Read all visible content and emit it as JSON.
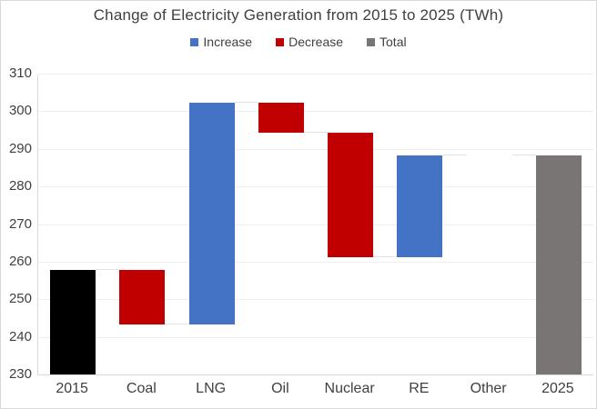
{
  "page": {
    "background": "#ffffff",
    "border_color": "#d9d9d9"
  },
  "chart_data": {
    "type": "bar",
    "subtype": "waterfall",
    "title": "Change of Electricity Generation from 2015 to 2025 (TWh)",
    "legend_position": "top",
    "grid": true,
    "categories": [
      "2015",
      "Coal",
      "LNG",
      "Oil",
      "Nuclear",
      "RE",
      "Other",
      "2025"
    ],
    "bars": [
      {
        "category": "2015",
        "from": 230,
        "to": 258,
        "role": "start"
      },
      {
        "category": "Coal",
        "from": 258,
        "to": 243.5,
        "role": "decrease"
      },
      {
        "category": "LNG",
        "from": 243.5,
        "to": 302.5,
        "role": "increase"
      },
      {
        "category": "Oil",
        "from": 302.5,
        "to": 294.5,
        "role": "decrease"
      },
      {
        "category": "Nuclear",
        "from": 294.5,
        "to": 261.5,
        "role": "decrease"
      },
      {
        "category": "RE",
        "from": 261.5,
        "to": 288.5,
        "role": "increase"
      },
      {
        "category": "Other",
        "from": 288.5,
        "to": 288.5,
        "role": "none"
      },
      {
        "category": "2025",
        "from": 230,
        "to": 288.5,
        "role": "total"
      }
    ],
    "deltas": {
      "Coal": -14.5,
      "LNG": 59,
      "Oil": -8,
      "Nuclear": -33,
      "RE": 27,
      "Other": 0
    },
    "totals": {
      "2015": 258,
      "2025": 288.5
    },
    "y_axis": {
      "min": 230,
      "max": 310,
      "step": 10,
      "ticks": [
        310,
        300,
        290,
        280,
        270,
        260,
        250,
        240,
        230
      ]
    },
    "legend": [
      {
        "label": "Increase",
        "color": "#4472C4"
      },
      {
        "label": "Decrease",
        "color": "#C00000"
      },
      {
        "label": "Total",
        "color": "#7A7575"
      }
    ],
    "colors": {
      "start": "#000000",
      "increase": "#4472C4",
      "decrease": "#C00000",
      "total": "#7A7575",
      "grid": "#efefef",
      "axis": "#d9d9d9",
      "connector": "#e2e2e2",
      "text": "#404040"
    }
  }
}
